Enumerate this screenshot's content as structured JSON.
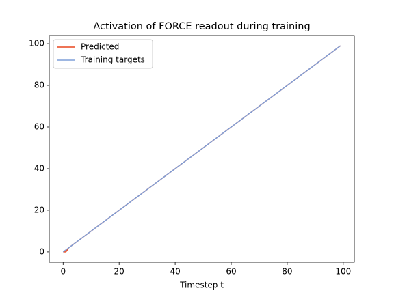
{
  "chart_data": {
    "type": "line",
    "title": "Activation of FORCE readout during training",
    "xlabel": "Timestep t",
    "x": [
      0,
      1,
      2,
      3,
      4,
      5,
      6,
      7,
      8,
      9,
      10,
      11,
      12,
      13,
      14,
      15,
      16,
      17,
      18,
      19,
      20,
      21,
      22,
      23,
      24,
      25,
      26,
      27,
      28,
      29,
      30,
      31,
      32,
      33,
      34,
      35,
      36,
      37,
      38,
      39,
      40,
      41,
      42,
      43,
      44,
      45,
      46,
      47,
      48,
      49,
      50,
      51,
      52,
      53,
      54,
      55,
      56,
      57,
      58,
      59,
      60,
      61,
      62,
      63,
      64,
      65,
      66,
      67,
      68,
      69,
      70,
      71,
      72,
      73,
      74,
      75,
      76,
      77,
      78,
      79,
      80,
      81,
      82,
      83,
      84,
      85,
      86,
      87,
      88,
      89,
      90,
      91,
      92,
      93,
      94,
      95,
      96,
      97,
      98,
      99
    ],
    "series": [
      {
        "name": "Predicted",
        "color": "#e8471f",
        "values": [
          0,
          0,
          2,
          3,
          4,
          5,
          6,
          7,
          8,
          9,
          10,
          11,
          12,
          13,
          14,
          15,
          16,
          17,
          18,
          19,
          20,
          21,
          22,
          23,
          24,
          25,
          26,
          27,
          28,
          29,
          30,
          31,
          32,
          33,
          34,
          35,
          36,
          37,
          38,
          39,
          40,
          41,
          42,
          43,
          44,
          45,
          46,
          47,
          48,
          49,
          50,
          51,
          52,
          53,
          54,
          55,
          56,
          57,
          58,
          59,
          60,
          61,
          62,
          63,
          64,
          65,
          66,
          67,
          68,
          69,
          70,
          71,
          72,
          73,
          74,
          75,
          76,
          77,
          78,
          79,
          80,
          81,
          82,
          83,
          84,
          85,
          86,
          87,
          88,
          89,
          90,
          91,
          92,
          93,
          94,
          95,
          96,
          97,
          98,
          99
        ]
      },
      {
        "name": "Training targets",
        "color": "#7f9fd8",
        "values": [
          0,
          1,
          2,
          3,
          4,
          5,
          6,
          7,
          8,
          9,
          10,
          11,
          12,
          13,
          14,
          15,
          16,
          17,
          18,
          19,
          20,
          21,
          22,
          23,
          24,
          25,
          26,
          27,
          28,
          29,
          30,
          31,
          32,
          33,
          34,
          35,
          36,
          37,
          38,
          39,
          40,
          41,
          42,
          43,
          44,
          45,
          46,
          47,
          48,
          49,
          50,
          51,
          52,
          53,
          54,
          55,
          56,
          57,
          58,
          59,
          60,
          61,
          62,
          63,
          64,
          65,
          66,
          67,
          68,
          69,
          70,
          71,
          72,
          73,
          74,
          75,
          76,
          77,
          78,
          79,
          80,
          81,
          82,
          83,
          84,
          85,
          86,
          87,
          88,
          89,
          90,
          91,
          92,
          93,
          94,
          95,
          96,
          97,
          98,
          99
        ]
      }
    ],
    "xlim": [
      -4.95,
      103.95
    ],
    "xticks": [
      0,
      20,
      40,
      60,
      80,
      100
    ],
    "ylim": [
      -4.95,
      103.95
    ],
    "yticks": [
      0,
      20,
      40,
      60,
      80,
      100
    ],
    "legend": "upper left"
  }
}
